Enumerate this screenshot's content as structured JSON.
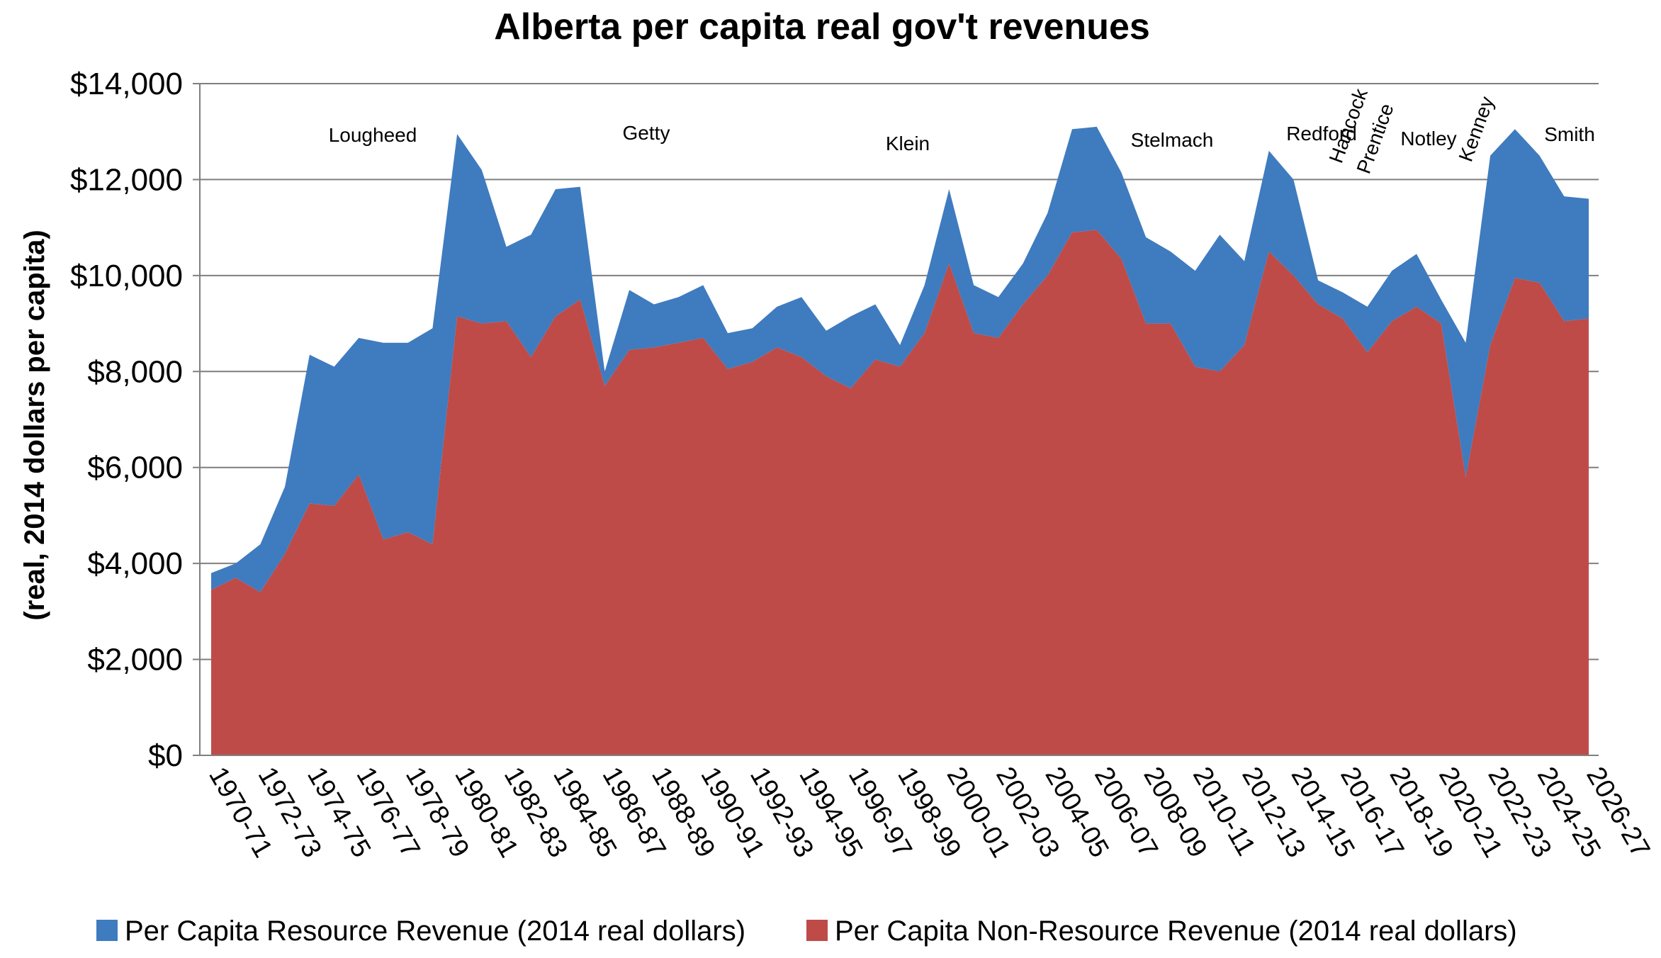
{
  "chart_data": {
    "type": "area",
    "stacked": true,
    "title": "Alberta per capita real gov't revenues",
    "ylabel": "(real, 2014 dollars per capita)",
    "xlabel": "",
    "ylim": [
      0,
      14000
    ],
    "yticks": [
      "$0",
      "$2,000",
      "$4,000",
      "$6,000",
      "$8,000",
      "$10,000",
      "$12,000",
      "$14,000"
    ],
    "grid": true,
    "legend_position": "bottom",
    "categories": [
      "1970-71",
      "1971-72",
      "1972-73",
      "1973-74",
      "1974-75",
      "1975-76",
      "1976-77",
      "1977-78",
      "1978-79",
      "1979-80",
      "1980-81",
      "1981-82",
      "1982-83",
      "1983-84",
      "1984-85",
      "1985-86",
      "1986-87",
      "1987-88",
      "1988-89",
      "1989-90",
      "1990-91",
      "1991-92",
      "1992-93",
      "1993-94",
      "1994-95",
      "1995-96",
      "1996-97",
      "1997-98",
      "1998-99",
      "1999-00",
      "2000-01",
      "2001-02",
      "2002-03",
      "2003-04",
      "2004-05",
      "2005-06",
      "2006-07",
      "2007-08",
      "2008-09",
      "2009-10",
      "2010-11",
      "2011-12",
      "2012-13",
      "2013-14",
      "2014-15",
      "2015-16",
      "2016-17",
      "2017-18",
      "2018-19",
      "2019-20",
      "2020-21",
      "2021-22",
      "2022-23",
      "2023-24",
      "2024-25",
      "2025-26",
      "2026-27"
    ],
    "x_tick_labels": [
      "1970-71",
      "1972-73",
      "1974-75",
      "1976-77",
      "1978-79",
      "1980-81",
      "1982-83",
      "1984-85",
      "1986-87",
      "1988-89",
      "1990-91",
      "1992-93",
      "1994-95",
      "1996-97",
      "1998-99",
      "2000-01",
      "2002-03",
      "2004-05",
      "2006-07",
      "2008-09",
      "2010-11",
      "2012-13",
      "2014-15",
      "2016-17",
      "2018-19",
      "2020-21",
      "2022-23",
      "2024-25",
      "2026-27"
    ],
    "series": [
      {
        "name": "Per Capita Non-Resource Revenue (2014 real dollars)",
        "color": "#be4b48",
        "values": [
          3450,
          3700,
          3400,
          4200,
          5250,
          5200,
          5850,
          4500,
          4650,
          4400,
          9150,
          9000,
          9050,
          8300,
          9150,
          9500,
          7700,
          8450,
          8500,
          8600,
          8700,
          8050,
          8200,
          8500,
          8300,
          7900,
          7650,
          8250,
          8100,
          8800,
          10250,
          8800,
          8700,
          9400,
          10000,
          10900,
          10950,
          10350,
          9000,
          9000,
          8100,
          8000,
          8550,
          10500,
          10000,
          9400,
          9100,
          8400,
          9050,
          9350,
          9000,
          5800,
          8550,
          9950,
          9850,
          9050,
          9100
        ]
      },
      {
        "name": "Per Capita Resource Revenue (2014 real dollars)",
        "color": "#3f7bbf",
        "values": [
          350,
          300,
          1000,
          1400,
          3100,
          2900,
          2850,
          4100,
          3950,
          4500,
          3800,
          3200,
          1550,
          2550,
          2650,
          2350,
          300,
          1250,
          900,
          950,
          1100,
          750,
          700,
          850,
          1250,
          950,
          1500,
          1150,
          450,
          1000,
          1550,
          1000,
          850,
          850,
          1300,
          2150,
          2150,
          1800,
          1800,
          1500,
          2000,
          2850,
          1750,
          2100,
          2000,
          500,
          550,
          950,
          1050,
          1100,
          500,
          2800,
          3950,
          3100,
          2650,
          2600,
          2500
        ]
      }
    ],
    "annotations": [
      "Lougheed",
      "Getty",
      "Klein",
      "Stelmach",
      "Redford",
      "Hancock",
      "Prentice",
      "Notley",
      "Kenney",
      "Smith"
    ]
  }
}
